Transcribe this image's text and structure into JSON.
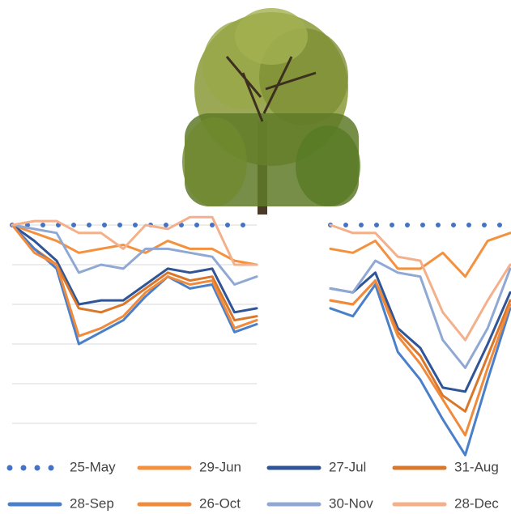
{
  "chart_data": [
    {
      "type": "line",
      "ylim": [
        -55,
        3
      ],
      "yticks": [
        0,
        -10,
        -20,
        -30,
        -40,
        -50
      ],
      "grid": true,
      "legend": "bottom",
      "series": [
        {
          "name": "25-May",
          "color": "#4472c4",
          "style": "dotted",
          "values": [
            0,
            0,
            0,
            0,
            0,
            0,
            0,
            0,
            0,
            0,
            0,
            0
          ]
        },
        {
          "name": "29-Jun",
          "color": "#f4913f",
          "values": [
            0,
            -2,
            -4,
            -7,
            -6,
            -5,
            -7,
            -4,
            -6,
            -6,
            -9,
            -10
          ]
        },
        {
          "name": "27-Jul",
          "color": "#2f5597",
          "values": [
            0,
            -4,
            -9,
            -20,
            -19,
            -19,
            -15,
            -11,
            -12,
            -11,
            -22,
            -21
          ]
        },
        {
          "name": "31-Aug",
          "color": "#d9782d",
          "values": [
            0,
            -6,
            -10,
            -21,
            -22,
            -20,
            -16,
            -12,
            -14,
            -13,
            -24,
            -23
          ]
        },
        {
          "name": "28-Sep",
          "color": "#4a7fc9",
          "values": [
            0,
            -6,
            -11,
            -30,
            -27,
            -24,
            -18,
            -13,
            -16,
            -15,
            -27,
            -25
          ]
        },
        {
          "name": "26-Oct",
          "color": "#f08a3c",
          "values": [
            0,
            -7,
            -10,
            -28,
            -26,
            -23,
            -17,
            -13,
            -15,
            -14,
            -26,
            -24
          ]
        },
        {
          "name": "30-Nov",
          "color": "#8fa8d4",
          "values": [
            0,
            -1,
            -2,
            -12,
            -10,
            -11,
            -6,
            -6,
            -7,
            -8,
            -15,
            -13
          ]
        },
        {
          "name": "28-Dec",
          "color": "#f4b08a",
          "values": [
            0,
            1,
            1,
            -2,
            -2,
            -6,
            0,
            -1,
            2,
            2,
            -10,
            -10
          ]
        }
      ]
    },
    {
      "type": "line",
      "ylim": [
        -60,
        3
      ],
      "grid": false,
      "series": [
        {
          "color": "#4472c4",
          "style": "dotted",
          "values": [
            0,
            0,
            0,
            0,
            0,
            0,
            0,
            0,
            0
          ]
        },
        {
          "color": "#f4913f",
          "values": [
            -6,
            -7,
            -4,
            -11,
            -11,
            -7,
            -13,
            -4,
            -2
          ]
        },
        {
          "color": "#2f5597",
          "values": [
            -16,
            -17,
            -12,
            -26,
            -31,
            -41,
            -42,
            -30,
            -17
          ]
        },
        {
          "color": "#d9782d",
          "values": [
            -19,
            -20,
            -14,
            -27,
            -33,
            -43,
            -47,
            -33,
            -19
          ]
        },
        {
          "color": "#4a7fc9",
          "values": [
            -21,
            -23,
            -15,
            -32,
            -39,
            -49,
            -58,
            -39,
            -21
          ]
        },
        {
          "color": "#f08a3c",
          "values": [
            -19,
            -20,
            -14,
            -28,
            -35,
            -44,
            -53,
            -36,
            -20
          ]
        },
        {
          "color": "#8fa8d4",
          "values": [
            -16,
            -17,
            -9,
            -12,
            -13,
            -29,
            -36,
            -26,
            -11
          ]
        },
        {
          "color": "#f4b08a",
          "values": [
            0,
            -2,
            -2,
            -8,
            -9,
            -22,
            -29,
            -19,
            -10
          ]
        }
      ]
    }
  ]
}
